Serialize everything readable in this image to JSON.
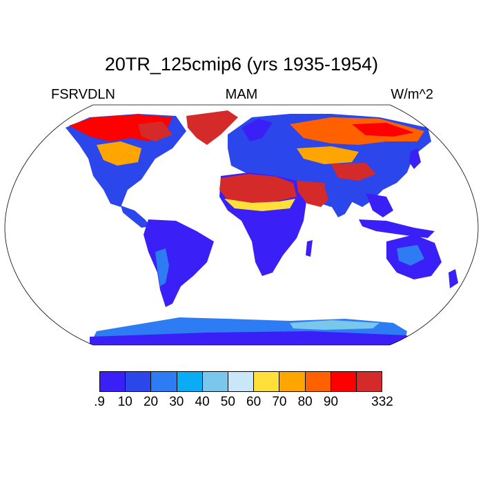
{
  "title": "20TR_125cmip6 (yrs 1935-1954)",
  "variable": "FSRVDLN",
  "season": "MAM",
  "units": "W/m^2",
  "colorbar": {
    "colors": [
      "#3b1ff7",
      "#2b46ea",
      "#2e7cf3",
      "#0aadf5",
      "#7ac7ee",
      "#c9e7f8",
      "#ffe03a",
      "#ffa500",
      "#ff6000",
      "#ff0000",
      "#d42a2a"
    ],
    "labels": [
      ".9",
      "10",
      "20",
      "30",
      "40",
      "50",
      "60",
      "70",
      "80",
      "90",
      "332"
    ]
  },
  "colors": {
    "ocean": "#ffffff",
    "land_dark_blue": "#3b1ff7",
    "land_blue": "#2b46ea",
    "land_mid_blue": "#2e7cf3",
    "land_light_blue": "#7ac7ee",
    "land_yellow": "#ffe03a",
    "land_orange": "#ffa500",
    "land_red": "#ff0000",
    "land_dark_red": "#d42a2a"
  }
}
